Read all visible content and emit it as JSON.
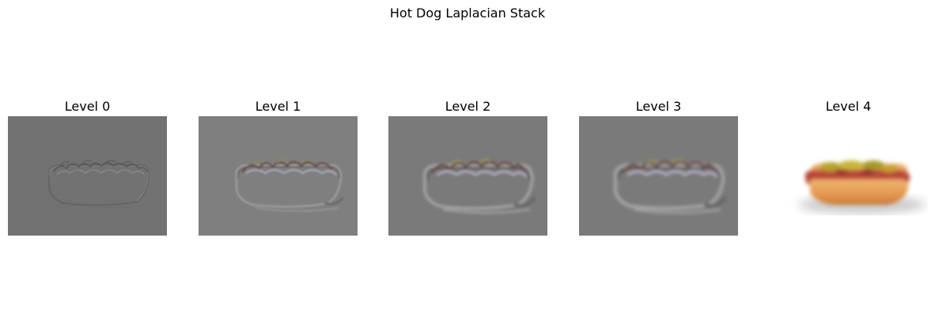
{
  "figure": {
    "title": "Hot Dog Laplacian Stack"
  },
  "panels": [
    {
      "title": "Level 0",
      "background": "#727272",
      "mode": "edges-fine"
    },
    {
      "title": "Level 1",
      "background": "#7f7f7f",
      "mode": "edges-mid"
    },
    {
      "title": "Level 2",
      "background": "#7a7a7a",
      "mode": "edges-coarse"
    },
    {
      "title": "Level 3",
      "background": "#7a7a7a",
      "mode": "edges-coarse"
    },
    {
      "title": "Level 4",
      "background": "#ffffff",
      "mode": "color"
    }
  ]
}
